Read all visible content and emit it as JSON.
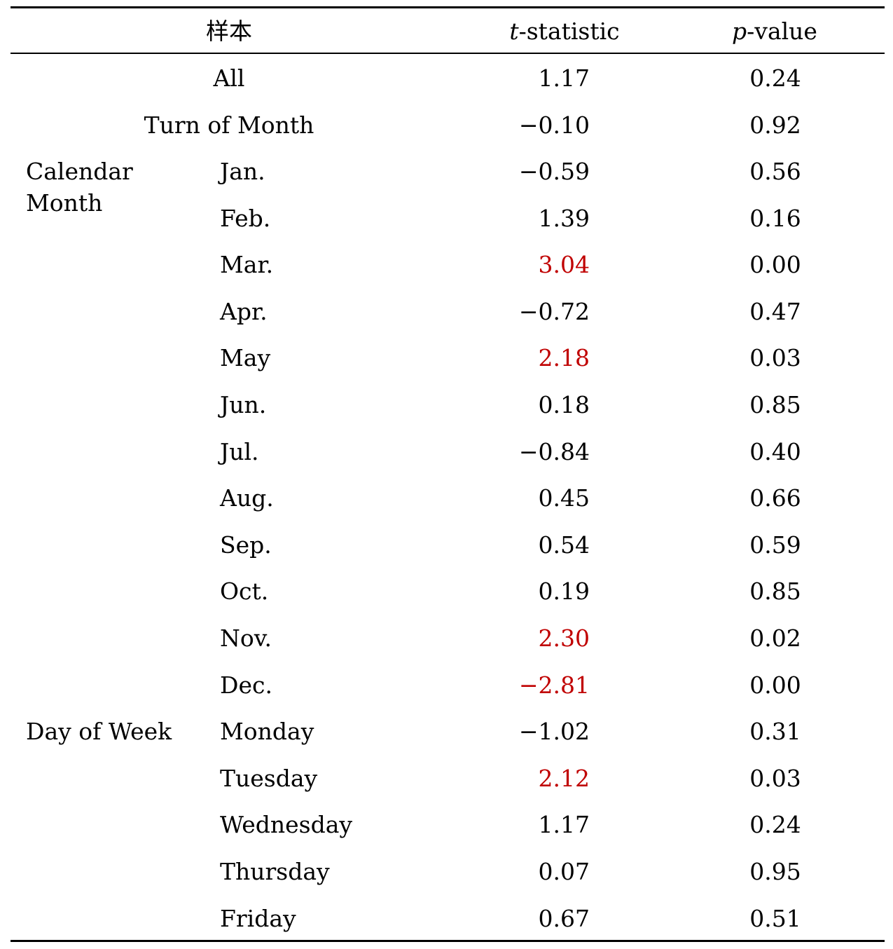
{
  "header": {
    "sample": "样本",
    "t_italic": "t",
    "t_rest": "-statistic",
    "p_italic": "p",
    "p_rest": "-value"
  },
  "top_rows": [
    {
      "label": "All",
      "t": "1.17",
      "p": "0.24"
    },
    {
      "label": "Turn of Month",
      "t": "−0.10",
      "p": "0.92"
    }
  ],
  "group_labels": {
    "calendar_line1": "Calendar",
    "calendar_line2": "Month",
    "day_of_week": "Day of Week"
  },
  "rows": [
    {
      "label": "Jan.",
      "t": "−0.59",
      "p": "0.56",
      "significant": false
    },
    {
      "label": "Feb.",
      "t": "1.39",
      "p": "0.16",
      "significant": false
    },
    {
      "label": "Mar.",
      "t": "3.04",
      "p": "0.00",
      "significant": true
    },
    {
      "label": "Apr.",
      "t": "−0.72",
      "p": "0.47",
      "significant": false
    },
    {
      "label": "May",
      "t": "2.18",
      "p": "0.03",
      "significant": true
    },
    {
      "label": "Jun.",
      "t": "0.18",
      "p": "0.85",
      "significant": false
    },
    {
      "label": "Jul.",
      "t": "−0.84",
      "p": "0.40",
      "significant": false
    },
    {
      "label": "Aug.",
      "t": "0.45",
      "p": "0.66",
      "significant": false
    },
    {
      "label": "Sep.",
      "t": "0.54",
      "p": "0.59",
      "significant": false
    },
    {
      "label": "Oct.",
      "t": "0.19",
      "p": "0.85",
      "significant": false
    },
    {
      "label": "Nov.",
      "t": "2.30",
      "p": "0.02",
      "significant": true
    },
    {
      "label": "Dec.",
      "t": "−2.81",
      "p": "0.00",
      "significant": true
    },
    {
      "label": "Monday",
      "t": "−1.02",
      "p": "0.31",
      "significant": false
    },
    {
      "label": "Tuesday",
      "t": "2.12",
      "p": "0.03",
      "significant": true
    },
    {
      "label": "Wednesday",
      "t": "1.17",
      "p": "0.24",
      "significant": false
    },
    {
      "label": "Thursday",
      "t": "0.07",
      "p": "0.95",
      "significant": false
    },
    {
      "label": "Friday",
      "t": "0.67",
      "p": "0.51",
      "significant": false
    }
  ],
  "colors": {
    "significant": "#c00000",
    "normal": "#000000"
  }
}
